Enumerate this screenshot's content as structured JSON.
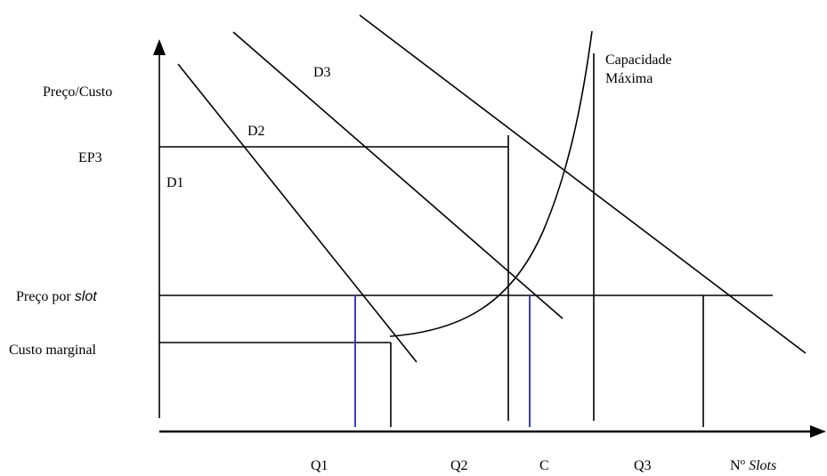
{
  "diagram": {
    "y_axis_label": "Preço/Custo",
    "ep3_label": "EP3",
    "price_per_slot_label": "Preço por",
    "price_per_slot_italic": "slot",
    "marginal_cost_label": "Custo marginal",
    "curves": {
      "d1": "D1",
      "d2": "D2",
      "d3": "D3"
    },
    "capacity_label_line1": "Capacidade",
    "capacity_label_line2": "Máxima",
    "x_labels": {
      "q1": "Q1",
      "q2": "Q2",
      "c": "C",
      "q3": "Q3",
      "slots_prefix": "N",
      "slots_sup": "o",
      "slots_italic": "Slots"
    },
    "colors": {
      "lines": "#000000",
      "highlight": "#3a3ad0"
    }
  }
}
